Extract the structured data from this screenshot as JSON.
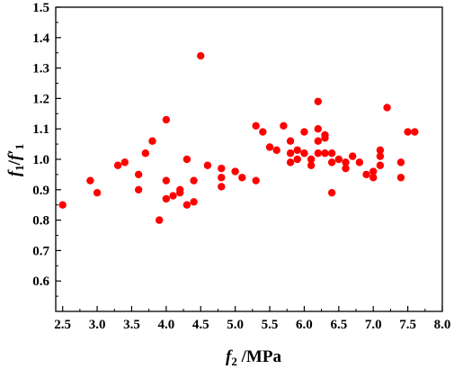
{
  "chart_data": {
    "type": "scatter",
    "xlim": [
      2.4,
      8.0
    ],
    "ylim": [
      0.5,
      1.5
    ],
    "x_ticks": [
      "2.5",
      "3.0",
      "3.5",
      "4.0",
      "4.5",
      "5.0",
      "5.5",
      "6.0",
      "6.5",
      "7.0",
      "7.5",
      "8.0"
    ],
    "y_ticks": [
      "0.6",
      "0.7",
      "0.8",
      "0.9",
      "1.0",
      "1.1",
      "1.2",
      "1.3",
      "1.4",
      "1.5"
    ],
    "xlabel": {
      "var": "f",
      "sub": "2",
      "unit": " /MPa"
    },
    "ylabel": {
      "num_var": "f",
      "num_sub": "1",
      "slash": "/",
      "den_var": "f′",
      "den_sub": "1"
    },
    "grid": false,
    "marker_color": "#ff0000",
    "series": [
      {
        "points": [
          [
            2.5,
            0.85
          ],
          [
            2.9,
            0.93
          ],
          [
            3.0,
            0.89
          ],
          [
            3.3,
            0.98
          ],
          [
            3.4,
            0.99
          ],
          [
            3.6,
            0.95
          ],
          [
            3.6,
            0.9
          ],
          [
            3.7,
            1.02
          ],
          [
            3.8,
            1.06
          ],
          [
            3.9,
            0.8
          ],
          [
            4.0,
            1.13
          ],
          [
            4.0,
            0.93
          ],
          [
            4.0,
            0.87
          ],
          [
            4.1,
            0.88
          ],
          [
            4.2,
            0.89
          ],
          [
            4.2,
            0.9
          ],
          [
            4.3,
            1.0
          ],
          [
            4.3,
            0.85
          ],
          [
            4.4,
            0.93
          ],
          [
            4.4,
            0.86
          ],
          [
            4.5,
            1.34
          ],
          [
            4.6,
            0.98
          ],
          [
            4.8,
            0.97
          ],
          [
            4.8,
            0.94
          ],
          [
            4.8,
            0.91
          ],
          [
            5.0,
            0.96
          ],
          [
            5.1,
            0.94
          ],
          [
            5.3,
            1.11
          ],
          [
            5.3,
            0.93
          ],
          [
            5.4,
            1.09
          ],
          [
            5.5,
            1.04
          ],
          [
            5.6,
            1.03
          ],
          [
            5.7,
            1.11
          ],
          [
            5.8,
            1.06
          ],
          [
            5.8,
            1.02
          ],
          [
            5.8,
            0.99
          ],
          [
            5.9,
            1.03
          ],
          [
            5.9,
            1.0
          ],
          [
            6.0,
            1.09
          ],
          [
            6.0,
            1.02
          ],
          [
            6.1,
            1.0
          ],
          [
            6.1,
            0.98
          ],
          [
            6.2,
            1.19
          ],
          [
            6.2,
            1.1
          ],
          [
            6.2,
            1.06
          ],
          [
            6.2,
            1.02
          ],
          [
            6.3,
            1.08
          ],
          [
            6.3,
            1.07
          ],
          [
            6.3,
            1.02
          ],
          [
            6.4,
            1.02
          ],
          [
            6.4,
            0.99
          ],
          [
            6.4,
            0.89
          ],
          [
            6.5,
            1.0
          ],
          [
            6.6,
            0.99
          ],
          [
            6.6,
            0.97
          ],
          [
            6.7,
            1.01
          ],
          [
            6.8,
            0.99
          ],
          [
            6.9,
            0.95
          ],
          [
            7.0,
            0.96
          ],
          [
            7.0,
            0.94
          ],
          [
            7.1,
            1.03
          ],
          [
            7.1,
            1.01
          ],
          [
            7.1,
            0.98
          ],
          [
            7.2,
            1.17
          ],
          [
            7.4,
            0.99
          ],
          [
            7.4,
            0.94
          ],
          [
            7.5,
            1.09
          ],
          [
            7.6,
            1.09
          ]
        ]
      }
    ]
  }
}
